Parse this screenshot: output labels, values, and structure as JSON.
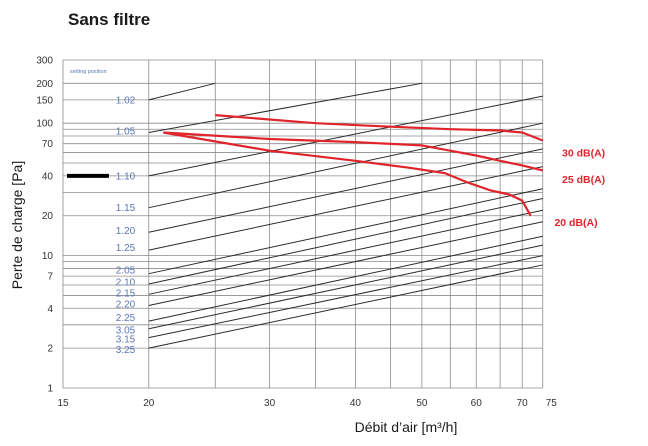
{
  "chart_data": {
    "type": "line",
    "title": "Sans filtre",
    "xlabel": "Débit d’air [m³/h]",
    "ylabel": "Perte de charge [Pa]",
    "x_scale": "log",
    "y_scale": "log",
    "xlim": [
      15,
      80
    ],
    "ylim": [
      1,
      300
    ],
    "x_ticks": [
      15,
      20,
      30,
      40,
      50,
      60,
      70,
      75
    ],
    "y_ticks": [
      1,
      2,
      4,
      7,
      10,
      20,
      40,
      70,
      100,
      150,
      200,
      300
    ],
    "x_grid": [
      15,
      20,
      25,
      30,
      35,
      40,
      45,
      50,
      55,
      60,
      65,
      70,
      75
    ],
    "y_grid": [
      1,
      2,
      3,
      4,
      5,
      6,
      7,
      8,
      9,
      10,
      20,
      30,
      40,
      50,
      60,
      70,
      80,
      90,
      100,
      150,
      200,
      300
    ],
    "grid": true,
    "setting_legend": "setting position",
    "setting_lines": [
      {
        "label": "1.02",
        "x0": 20,
        "y0": 150,
        "x1": 25,
        "y1": 200,
        "lx": 18.5,
        "ly": 150
      },
      {
        "label": "1.05",
        "x0": 20,
        "y0": 85,
        "x1": 50,
        "y1": 200,
        "lx": 18.5,
        "ly": 87
      },
      {
        "label": "1.10",
        "x0": 20,
        "y0": 40,
        "x1": 75,
        "y1": 160,
        "lx": 18.5,
        "ly": 40
      },
      {
        "label": "1.15",
        "x0": 20,
        "y0": 23,
        "x1": 75,
        "y1": 100,
        "lx": 18.5,
        "ly": 23
      },
      {
        "label": "1.20",
        "x0": 20,
        "y0": 15,
        "x1": 75,
        "y1": 64,
        "lx": 18.5,
        "ly": 15.5
      },
      {
        "label": "1.25",
        "x0": 20,
        "y0": 11,
        "x1": 75,
        "y1": 47,
        "lx": 18.5,
        "ly": 11.5
      },
      {
        "label": "2.05",
        "x0": 20,
        "y0": 7.3,
        "x1": 75,
        "y1": 32,
        "lx": 18.5,
        "ly": 7.8
      },
      {
        "label": "2.10",
        "x0": 20,
        "y0": 6.1,
        "x1": 75,
        "y1": 27,
        "lx": 18.5,
        "ly": 6.3
      },
      {
        "label": "2.15",
        "x0": 20,
        "y0": 5.1,
        "x1": 75,
        "y1": 22,
        "lx": 18.5,
        "ly": 5.2
      },
      {
        "label": "2.20",
        "x0": 20,
        "y0": 4.2,
        "x1": 75,
        "y1": 18,
        "lx": 18.5,
        "ly": 4.3
      },
      {
        "label": "2.25",
        "x0": 20,
        "y0": 3.2,
        "x1": 75,
        "y1": 14,
        "lx": 18.5,
        "ly": 3.4
      },
      {
        "label": "3.05",
        "x0": 20,
        "y0": 2.8,
        "x1": 75,
        "y1": 12,
        "lx": 18.5,
        "ly": 2.75
      },
      {
        "label": "3.15",
        "x0": 20,
        "y0": 2.4,
        "x1": 75,
        "y1": 10,
        "lx": 18.5,
        "ly": 2.35
      },
      {
        "label": "3.25",
        "x0": 20,
        "y0": 2.0,
        "x1": 75,
        "y1": 8.5,
        "lx": 18.5,
        "ly": 1.95
      }
    ],
    "series": [
      {
        "name": "30 dB(A)",
        "x": [
          25,
          35,
          45,
          55,
          65,
          70,
          75
        ],
        "y": [
          115,
          100,
          94,
          90,
          88,
          85,
          74
        ]
      },
      {
        "name": "25 dB(A)",
        "x": [
          21,
          30,
          40,
          50,
          55,
          60,
          65,
          70,
          75
        ],
        "y": [
          85,
          76,
          72,
          68,
          62,
          57,
          52,
          48,
          44
        ]
      },
      {
        "name": "20 dB(A)",
        "x": [
          21,
          30,
          40,
          48,
          54,
          58,
          63,
          67,
          70,
          72
        ],
        "y": [
          85,
          62,
          52,
          46,
          42,
          36,
          31,
          29,
          26,
          20
        ]
      }
    ],
    "series_label_pos": [
      {
        "x": 80,
        "y": 60
      },
      {
        "x": 80,
        "y": 38
      },
      {
        "x": 78,
        "y": 18
      }
    ],
    "marker": {
      "x0": 15,
      "x1": 17.5,
      "y": 40,
      "color": "#000000"
    },
    "colors": {
      "curve": "#e0242b",
      "setting": "#5a78b4",
      "grid": "#8c8c8c",
      "diagonal": "#2b2b2b"
    }
  }
}
